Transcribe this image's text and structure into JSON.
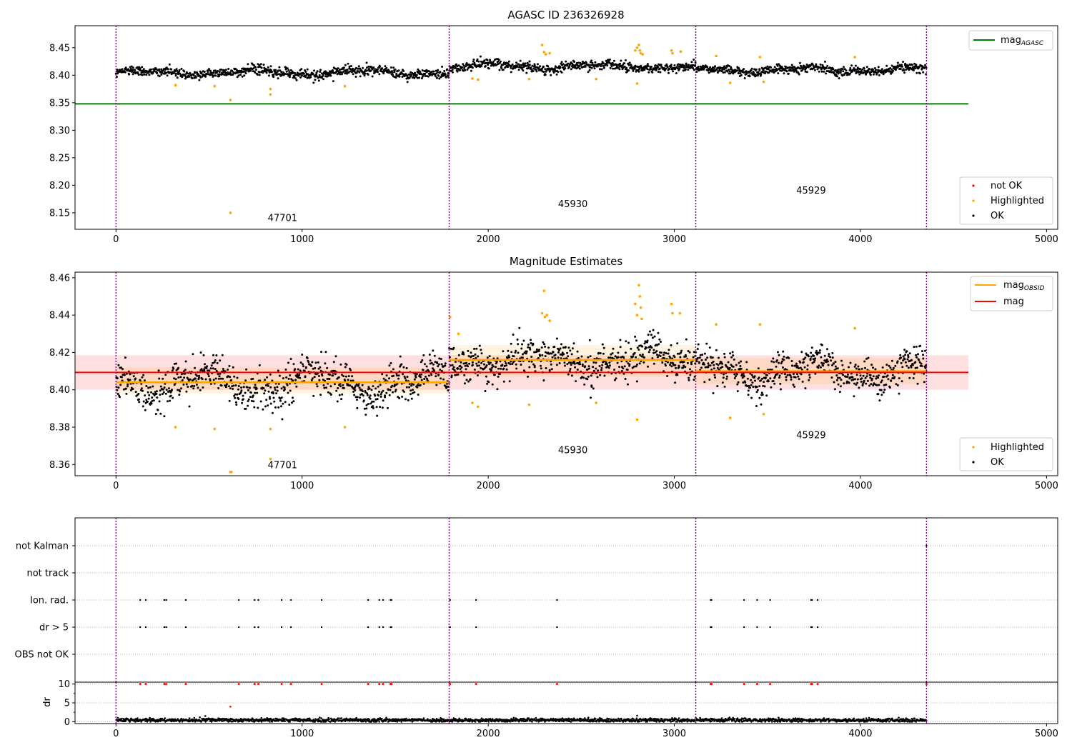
{
  "chart_data": [
    {
      "id": "agasc",
      "type": "scatter",
      "title": "AGASC ID 236326928",
      "xlim": [
        -220,
        5060
      ],
      "ylim": [
        8.12,
        8.49
      ],
      "xticks": [
        0,
        1000,
        2000,
        3000,
        4000,
        5000
      ],
      "yticks": [
        8.15,
        8.2,
        8.25,
        8.3,
        8.35,
        8.4,
        8.45
      ],
      "ytick_labels": [
        "8.15",
        "8.20",
        "8.25",
        "8.30",
        "8.35",
        "8.40",
        "8.45"
      ],
      "grid": false,
      "reference_line": {
        "name_main": "mag",
        "name_sub": "AGASC",
        "y": 8.348,
        "x_range": [
          -220,
          4580
        ],
        "color": "#008000"
      },
      "obsid_boundaries": [
        0,
        1790,
        3115,
        4355
      ],
      "obsid_labels": [
        {
          "text": "47701",
          "x": 895,
          "y": 8.135
        },
        {
          "text": "45930",
          "x": 2455,
          "y": 8.16
        },
        {
          "text": "45929",
          "x": 3735,
          "y": 8.185
        }
      ],
      "segments": [
        {
          "x": [
            0,
            1790
          ],
          "base": 8.405,
          "amp": 0.004,
          "noise": 0.008
        },
        {
          "x": [
            1790,
            3115
          ],
          "base": 8.416,
          "amp": 0.004,
          "noise": 0.008
        },
        {
          "x": [
            3115,
            4355
          ],
          "base": 8.41,
          "amp": 0.004,
          "noise": 0.007
        }
      ],
      "highlighted_points": [
        {
          "x": 320,
          "y": 8.382
        },
        {
          "x": 530,
          "y": 8.38
        },
        {
          "x": 615,
          "y": 8.355
        },
        {
          "x": 830,
          "y": 8.375
        },
        {
          "x": 830,
          "y": 8.365
        },
        {
          "x": 615,
          "y": 8.15
        },
        {
          "x": 1230,
          "y": 8.38
        },
        {
          "x": 1915,
          "y": 8.394
        },
        {
          "x": 1945,
          "y": 8.392
        },
        {
          "x": 2220,
          "y": 8.393
        },
        {
          "x": 2290,
          "y": 8.455
        },
        {
          "x": 2300,
          "y": 8.442
        },
        {
          "x": 2310,
          "y": 8.438
        },
        {
          "x": 2330,
          "y": 8.44
        },
        {
          "x": 2580,
          "y": 8.393
        },
        {
          "x": 2790,
          "y": 8.445
        },
        {
          "x": 2800,
          "y": 8.45
        },
        {
          "x": 2810,
          "y": 8.455
        },
        {
          "x": 2815,
          "y": 8.445
        },
        {
          "x": 2820,
          "y": 8.44
        },
        {
          "x": 2830,
          "y": 8.438
        },
        {
          "x": 2800,
          "y": 8.385
        },
        {
          "x": 2985,
          "y": 8.445
        },
        {
          "x": 2990,
          "y": 8.44
        },
        {
          "x": 3035,
          "y": 8.443
        },
        {
          "x": 3225,
          "y": 8.435
        },
        {
          "x": 3300,
          "y": 8.386
        },
        {
          "x": 3460,
          "y": 8.433
        },
        {
          "x": 3480,
          "y": 8.388
        },
        {
          "x": 3970,
          "y": 8.433
        }
      ],
      "legend": {
        "line_entry_position": "upper right",
        "marker_entries_position": "lower right",
        "marker_entries": [
          {
            "label": "not OK",
            "color": "#ff0000"
          },
          {
            "label": "Highlighted",
            "color": "#ffa500"
          },
          {
            "label": "OK",
            "color": "#000000"
          }
        ]
      }
    },
    {
      "id": "estimates",
      "type": "scatter",
      "title": "Magnitude Estimates",
      "xlim": [
        -220,
        5060
      ],
      "ylim": [
        8.354,
        8.463
      ],
      "xticks": [
        0,
        1000,
        2000,
        3000,
        4000,
        5000
      ],
      "yticks": [
        8.36,
        8.38,
        8.4,
        8.42,
        8.44,
        8.46
      ],
      "ytick_labels": [
        "8.36",
        "8.38",
        "8.40",
        "8.42",
        "8.44",
        "8.46"
      ],
      "grid": false,
      "mag_line": {
        "name": "mag",
        "y": 8.4093,
        "band": [
          8.4,
          8.4185
        ],
        "x_range": [
          -220,
          4580
        ],
        "color": "#ff0000"
      },
      "obsid_mag": {
        "name_main": "mag",
        "name_sub": "OBSID",
        "color": "#ffa500",
        "segments": [
          {
            "x": [
              0,
              1790
            ],
            "y": 8.404,
            "band": [
              8.398,
              8.412
            ]
          },
          {
            "x": [
              1790,
              3115
            ],
            "y": 8.416,
            "band": [
              8.407,
              8.424
            ]
          },
          {
            "x": [
              3115,
              4355
            ],
            "y": 8.41,
            "band": [
              8.403,
              8.417
            ]
          }
        ]
      },
      "obsid_boundaries": [
        0,
        1790,
        3115,
        4355
      ],
      "obsid_labels": [
        {
          "text": "47701",
          "x": 895,
          "y": 8.358
        },
        {
          "text": "45930",
          "x": 2455,
          "y": 8.366
        },
        {
          "text": "45929",
          "x": 3735,
          "y": 8.374
        }
      ],
      "segments": [
        {
          "x": [
            0,
            1790
          ],
          "base": 8.404,
          "amp": 0.006,
          "noise": 0.009
        },
        {
          "x": [
            1790,
            3115
          ],
          "base": 8.416,
          "amp": 0.004,
          "noise": 0.009
        },
        {
          "x": [
            3115,
            4355
          ],
          "base": 8.41,
          "amp": 0.005,
          "noise": 0.008
        }
      ],
      "highlighted_points": [
        {
          "x": 320,
          "y": 8.38
        },
        {
          "x": 530,
          "y": 8.379
        },
        {
          "x": 615,
          "y": 8.356
        },
        {
          "x": 620,
          "y": 8.356
        },
        {
          "x": 830,
          "y": 8.379
        },
        {
          "x": 830,
          "y": 8.363
        },
        {
          "x": 1230,
          "y": 8.38
        },
        {
          "x": 1795,
          "y": 8.439
        },
        {
          "x": 1840,
          "y": 8.43
        },
        {
          "x": 1915,
          "y": 8.393
        },
        {
          "x": 1945,
          "y": 8.391
        },
        {
          "x": 2220,
          "y": 8.392
        },
        {
          "x": 2300,
          "y": 8.453
        },
        {
          "x": 2290,
          "y": 8.441
        },
        {
          "x": 2305,
          "y": 8.439
        },
        {
          "x": 2315,
          "y": 8.44
        },
        {
          "x": 2330,
          "y": 8.437
        },
        {
          "x": 2580,
          "y": 8.393
        },
        {
          "x": 2790,
          "y": 8.446
        },
        {
          "x": 2800,
          "y": 8.44
        },
        {
          "x": 2810,
          "y": 8.456
        },
        {
          "x": 2815,
          "y": 8.45
        },
        {
          "x": 2820,
          "y": 8.444
        },
        {
          "x": 2825,
          "y": 8.438
        },
        {
          "x": 2800,
          "y": 8.384
        },
        {
          "x": 2985,
          "y": 8.446
        },
        {
          "x": 2990,
          "y": 8.441
        },
        {
          "x": 3030,
          "y": 8.441
        },
        {
          "x": 3225,
          "y": 8.435
        },
        {
          "x": 3300,
          "y": 8.385
        },
        {
          "x": 3460,
          "y": 8.435
        },
        {
          "x": 3480,
          "y": 8.387
        },
        {
          "x": 3970,
          "y": 8.433
        }
      ],
      "legend": {
        "line_entries_position": "upper right",
        "marker_entries_position": "lower right",
        "marker_entries": [
          {
            "label": "Highlighted",
            "color": "#ffa500"
          },
          {
            "label": "OK",
            "color": "#000000"
          }
        ]
      }
    },
    {
      "id": "flags",
      "type": "scatter",
      "title": "",
      "xlim": [
        -220,
        5060
      ],
      "categories": [
        "not Kalman",
        "not track",
        "Ion. rad.",
        "dr > 5",
        "OBS not OK"
      ],
      "obsid_boundaries": [
        0,
        1790,
        3115,
        4355
      ],
      "flag_points": {
        "not Kalman": [
          4355
        ],
        "not track": [],
        "Ion. rad.": [
          130,
          160,
          260,
          270,
          375,
          660,
          745,
          765,
          890,
          940,
          1105,
          1355,
          1415,
          1435,
          1475,
          1480,
          1795,
          1935,
          2370,
          3195,
          3200,
          3375,
          3445,
          3515,
          3735,
          3740,
          3770
        ],
        "dr > 5": [
          130,
          160,
          260,
          270,
          375,
          660,
          745,
          765,
          890,
          940,
          1105,
          1355,
          1415,
          1435,
          1475,
          1480,
          1795,
          1935,
          2370,
          3195,
          3200,
          3375,
          3445,
          3515,
          3735,
          3740,
          3770
        ],
        "OBS not OK": []
      }
    },
    {
      "id": "dr",
      "type": "scatter",
      "title": "",
      "xlim": [
        -220,
        5060
      ],
      "ylim": [
        -0.5,
        10.5
      ],
      "yticks": [
        0,
        5,
        10
      ],
      "ytick_labels": [
        "0",
        "5",
        "10"
      ],
      "ylabel": "dr",
      "xticks": [
        0,
        1000,
        2000,
        3000,
        4000,
        5000
      ],
      "obsid_boundaries": [
        0,
        1790,
        3115,
        4355
      ],
      "baseline": {
        "x": [
          0,
          4355
        ],
        "base": 0.4,
        "noise": 0.25
      },
      "extra_points": [
        {
          "x": 615,
          "y": 4.0
        },
        {
          "x": 480,
          "y": 1.5
        },
        {
          "x": 2800,
          "y": 1.6
        }
      ],
      "clipped_points_y": 10,
      "clipped_points_x": [
        130,
        160,
        260,
        270,
        375,
        660,
        745,
        765,
        890,
        940,
        1105,
        1355,
        1415,
        1435,
        1475,
        1480,
        1795,
        1935,
        2370,
        3195,
        3200,
        3375,
        3445,
        3515,
        3735,
        3740,
        3770,
        4355
      ]
    }
  ]
}
